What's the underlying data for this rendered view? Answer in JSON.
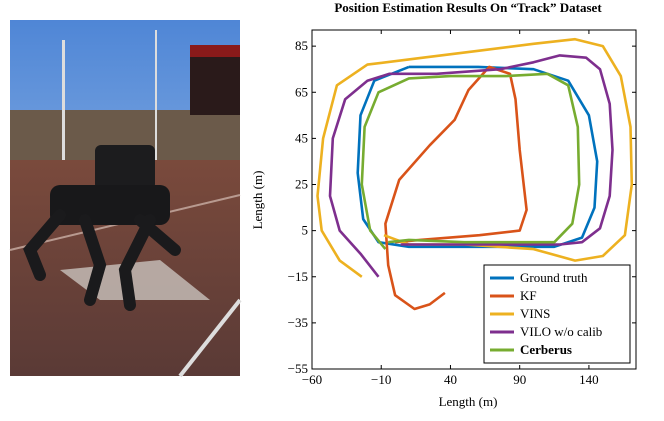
{
  "chart_data": {
    "type": "line",
    "title": "Position Estimation Results On “Track” Dataset",
    "xlabel": "Length (m)",
    "ylabel": "Length (m)",
    "xlim": [
      -60,
      174
    ],
    "ylim": [
      -55,
      92
    ],
    "xticks": [
      {
        "value": -60,
        "label": "−60"
      },
      {
        "value": -10,
        "label": "−10"
      },
      40,
      90,
      140
    ],
    "yticks": [
      {
        "value": -55,
        "label": "−55"
      },
      {
        "value": -35,
        "label": "−35"
      },
      {
        "value": -15,
        "label": "−15"
      },
      5,
      25,
      45,
      65,
      85
    ],
    "legend": "lower right",
    "series": [
      {
        "name": "Ground truth",
        "color": "#0072bd",
        "x": [
          10,
          60,
          100,
          125,
          140,
          146,
          144,
          135,
          115,
          60,
          10,
          -12,
          -23,
          -27,
          -25,
          -15,
          10
        ],
        "values": [
          76,
          76,
          75,
          70,
          55,
          35,
          15,
          2,
          -2,
          -2,
          -2,
          0,
          10,
          30,
          55,
          70,
          76
        ]
      },
      {
        "name": "KF",
        "color": "#d95319",
        "x": [
          36,
          25,
          14,
          0,
          -5,
          -7,
          3,
          25,
          43,
          53,
          68,
          83,
          87,
          90,
          95,
          90,
          61,
          18,
          0
        ],
        "values": [
          -22,
          -27,
          -29,
          -23,
          -10,
          8,
          27,
          42,
          53,
          66,
          76,
          73,
          62,
          40,
          14,
          5,
          3,
          1,
          0
        ]
      },
      {
        "name": "VINS",
        "color": "#edb120",
        "x": [
          -24,
          -40,
          -53,
          -56,
          -52,
          -42,
          -20,
          20,
          60,
          100,
          130,
          150,
          163,
          170,
          171,
          166,
          150,
          130,
          100,
          50,
          10,
          -8
        ],
        "values": [
          -15,
          -8,
          5,
          20,
          45,
          68,
          77,
          80,
          83,
          86,
          88,
          85,
          72,
          50,
          25,
          3,
          -6,
          -8,
          -3,
          -1,
          -1,
          3
        ]
      },
      {
        "name": "VILO w/o calib",
        "color": "#7e2f8e",
        "x": [
          -12,
          -25,
          -40,
          -47,
          -45,
          -36,
          -20,
          -4,
          30,
          76,
          100,
          119,
          138,
          148,
          155,
          157,
          155,
          148,
          135,
          119,
          80,
          40,
          4
        ],
        "values": [
          -15,
          -5,
          5,
          20,
          45,
          62,
          70,
          73,
          73,
          75,
          78,
          81,
          80,
          75,
          60,
          40,
          20,
          6,
          0,
          -1,
          -1,
          -1,
          -1
        ]
      },
      {
        "name": "Cerberus",
        "color": "#77ac30",
        "bold": true,
        "x": [
          -7,
          -18,
          -24,
          -22,
          -12,
          10,
          40,
          80,
          110,
          125,
          132,
          133,
          128,
          115,
          90,
          50,
          10,
          -5
        ],
        "values": [
          -3,
          5,
          25,
          50,
          65,
          71,
          72,
          72,
          73,
          68,
          50,
          25,
          8,
          0,
          0,
          0,
          1,
          0
        ]
      }
    ]
  }
}
